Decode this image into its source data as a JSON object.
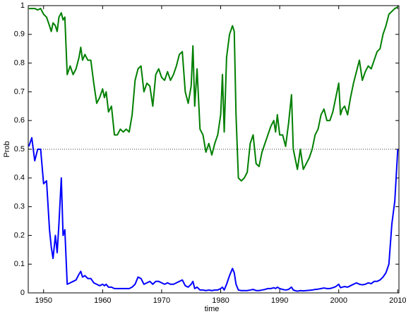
{
  "chart_data": {
    "type": "line",
    "x_label": "time",
    "y_label": "Prob",
    "x": [
      1947.5,
      1948,
      1948.5,
      1949,
      1949.5,
      1950,
      1950.5,
      1951,
      1951.3,
      1951.6,
      1952,
      1952.3,
      1952.6,
      1953,
      1953.3,
      1953.6,
      1954,
      1954.5,
      1955,
      1955.5,
      1956,
      1956.3,
      1956.6,
      1957,
      1957.5,
      1958,
      1958.5,
      1959,
      1959.5,
      1960,
      1960.3,
      1960.6,
      1961,
      1961.5,
      1962,
      1962.5,
      1963,
      1963.5,
      1964,
      1964.5,
      1965,
      1965.5,
      1966,
      1966.5,
      1967,
      1967.5,
      1968,
      1968.5,
      1969,
      1969.5,
      1970,
      1970.5,
      1971,
      1971.5,
      1972,
      1972.5,
      1973,
      1973.5,
      1974,
      1974.5,
      1975,
      1975.3,
      1975.6,
      1976,
      1976.5,
      1977,
      1977.5,
      1978,
      1978.5,
      1979,
      1979.5,
      1980,
      1980.3,
      1980.6,
      1981,
      1981.5,
      1982,
      1982.3,
      1982.6,
      1983,
      1983.5,
      1984,
      1984.5,
      1985,
      1985.5,
      1986,
      1986.5,
      1987,
      1987.5,
      1988,
      1988.5,
      1989,
      1989.3,
      1989.6,
      1990,
      1990.5,
      1991,
      1991.5,
      1992,
      1992.3,
      1992.6,
      1993,
      1993.5,
      1994,
      1994.5,
      1995,
      1995.5,
      1996,
      1996.5,
      1997,
      1997.5,
      1998,
      1998.5,
      1999,
      1999.5,
      2000,
      2000.3,
      2000.6,
      2001,
      2001.5,
      2002,
      2002.5,
      2003,
      2003.5,
      2004,
      2004.5,
      2005,
      2005.5,
      2006,
      2006.5,
      2007,
      2007.5,
      2008,
      2008.5,
      2009,
      2009.5,
      2010
    ],
    "series": [
      {
        "color": "#007f00",
        "values": [
          0.99,
          0.99,
          0.99,
          0.985,
          0.99,
          0.97,
          0.96,
          0.93,
          0.91,
          0.94,
          0.93,
          0.91,
          0.96,
          0.975,
          0.95,
          0.96,
          0.76,
          0.79,
          0.76,
          0.78,
          0.82,
          0.855,
          0.81,
          0.83,
          0.81,
          0.81,
          0.73,
          0.66,
          0.68,
          0.71,
          0.68,
          0.7,
          0.63,
          0.65,
          0.55,
          0.55,
          0.57,
          0.56,
          0.57,
          0.56,
          0.62,
          0.74,
          0.78,
          0.79,
          0.7,
          0.73,
          0.72,
          0.65,
          0.76,
          0.78,
          0.75,
          0.74,
          0.77,
          0.74,
          0.76,
          0.79,
          0.83,
          0.84,
          0.7,
          0.66,
          0.72,
          0.86,
          0.65,
          0.78,
          0.57,
          0.55,
          0.49,
          0.52,
          0.48,
          0.52,
          0.55,
          0.62,
          0.76,
          0.56,
          0.82,
          0.9,
          0.93,
          0.91,
          0.62,
          0.4,
          0.39,
          0.4,
          0.42,
          0.52,
          0.55,
          0.45,
          0.44,
          0.49,
          0.52,
          0.55,
          0.58,
          0.6,
          0.56,
          0.62,
          0.55,
          0.55,
          0.51,
          0.59,
          0.69,
          0.5,
          0.47,
          0.43,
          0.5,
          0.43,
          0.45,
          0.47,
          0.5,
          0.55,
          0.57,
          0.62,
          0.64,
          0.6,
          0.6,
          0.63,
          0.68,
          0.73,
          0.62,
          0.64,
          0.65,
          0.62,
          0.68,
          0.73,
          0.77,
          0.81,
          0.74,
          0.77,
          0.79,
          0.78,
          0.81,
          0.84,
          0.85,
          0.9,
          0.93,
          0.97,
          0.98,
          0.99,
          0.995
        ]
      },
      {
        "color": "#0000ff",
        "values": [
          0.51,
          0.54,
          0.46,
          0.5,
          0.5,
          0.38,
          0.39,
          0.22,
          0.16,
          0.12,
          0.2,
          0.14,
          0.24,
          0.4,
          0.2,
          0.22,
          0.03,
          0.035,
          0.04,
          0.045,
          0.065,
          0.075,
          0.055,
          0.06,
          0.05,
          0.05,
          0.035,
          0.03,
          0.025,
          0.03,
          0.025,
          0.03,
          0.02,
          0.02,
          0.015,
          0.015,
          0.015,
          0.015,
          0.015,
          0.015,
          0.02,
          0.03,
          0.055,
          0.05,
          0.03,
          0.035,
          0.04,
          0.03,
          0.04,
          0.04,
          0.035,
          0.03,
          0.035,
          0.03,
          0.03,
          0.035,
          0.04,
          0.045,
          0.025,
          0.02,
          0.03,
          0.04,
          0.015,
          0.02,
          0.01,
          0.01,
          0.008,
          0.01,
          0.008,
          0.01,
          0.01,
          0.015,
          0.02,
          0.01,
          0.03,
          0.06,
          0.085,
          0.07,
          0.03,
          0.01,
          0.008,
          0.008,
          0.008,
          0.01,
          0.012,
          0.008,
          0.008,
          0.01,
          0.012,
          0.015,
          0.015,
          0.018,
          0.015,
          0.02,
          0.015,
          0.012,
          0.01,
          0.012,
          0.02,
          0.01,
          0.008,
          0.006,
          0.008,
          0.007,
          0.008,
          0.009,
          0.01,
          0.012,
          0.013,
          0.015,
          0.017,
          0.015,
          0.015,
          0.018,
          0.022,
          0.03,
          0.018,
          0.02,
          0.022,
          0.02,
          0.025,
          0.03,
          0.035,
          0.03,
          0.028,
          0.03,
          0.035,
          0.032,
          0.04,
          0.04,
          0.045,
          0.055,
          0.07,
          0.1,
          0.24,
          0.32,
          0.5
        ]
      }
    ],
    "reference_line": 0.5,
    "xlim": [
      1947.4,
      2010.2
    ],
    "ylim": [
      0,
      1
    ],
    "xticks": [
      1950,
      1960,
      1970,
      1980,
      1990,
      2000,
      2010
    ],
    "yticks": [
      0,
      0.1,
      0.2,
      0.3,
      0.4,
      0.5,
      0.6,
      0.7,
      0.8,
      0.9,
      1
    ]
  }
}
